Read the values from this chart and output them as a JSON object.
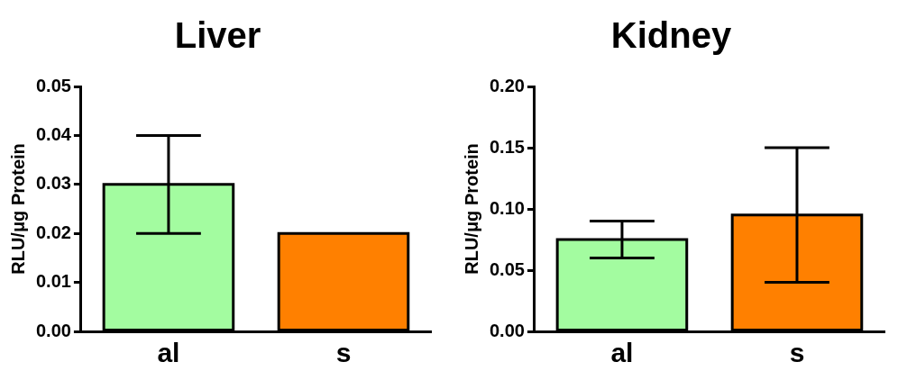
{
  "chart_data": [
    {
      "type": "bar",
      "title": "Liver",
      "ylabel": "RLU/μg Protein",
      "categories": [
        "al",
        "s"
      ],
      "values": [
        0.03,
        0.02
      ],
      "colors": [
        "#a3fca0",
        "#ff8000"
      ],
      "errors": [
        0.01,
        null
      ],
      "ylim": [
        0,
        0.05
      ],
      "yticks": [
        {
          "value": 0,
          "label": "0.00"
        },
        {
          "value": 0.01,
          "label": "0.01"
        },
        {
          "value": 0.02,
          "label": "0.02"
        },
        {
          "value": 0.03,
          "label": "0.03"
        },
        {
          "value": 0.04,
          "label": "0.04"
        },
        {
          "value": 0.05,
          "label": "0.05"
        }
      ]
    },
    {
      "type": "bar",
      "title": "Kidney",
      "ylabel": "RLU/μg Protein",
      "categories": [
        "al",
        "s"
      ],
      "values": [
        0.075,
        0.095
      ],
      "colors": [
        "#a3fca0",
        "#ff8000"
      ],
      "errors": [
        0.015,
        0.055
      ],
      "ylim": [
        0,
        0.2
      ],
      "yticks": [
        {
          "value": 0,
          "label": "0.00"
        },
        {
          "value": 0.05,
          "label": "0.05"
        },
        {
          "value": 0.1,
          "label": "0.10"
        },
        {
          "value": 0.15,
          "label": "0.15"
        },
        {
          "value": 0.2,
          "label": "0.20"
        }
      ]
    }
  ]
}
